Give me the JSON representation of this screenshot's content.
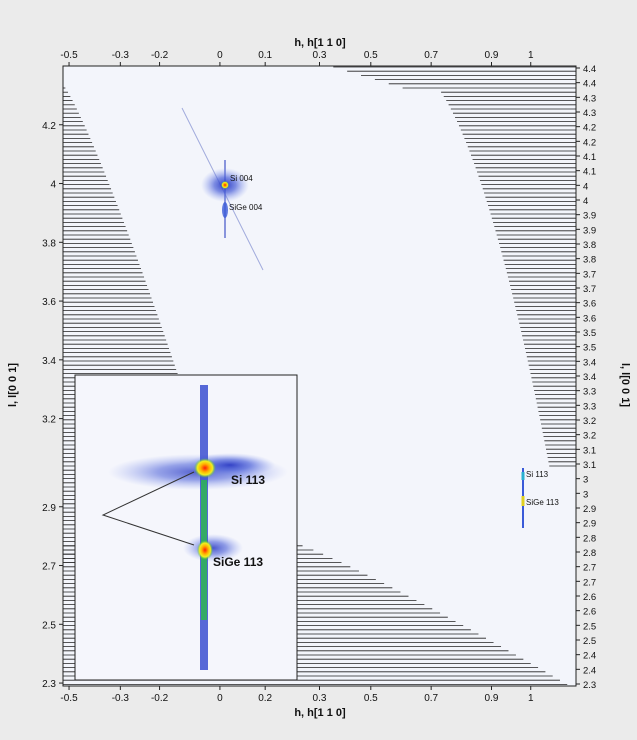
{
  "chart_data": {
    "type": "heatmap",
    "title": "",
    "xlabel": "h, h[1 1 0]",
    "ylabel": "l, l[0 0 1]",
    "xlim": [
      -0.52,
      1.18
    ],
    "ylim": [
      2.29,
      4.4
    ],
    "x_ticks_bottom": [
      "-0.5",
      "-0.3",
      "-0.2",
      "0",
      "0.2",
      "0.3",
      "0.5",
      "0.7",
      "0.9",
      "1"
    ],
    "x_tick_values_bottom": [
      -0.5,
      -0.33,
      -0.2,
      0,
      0.15,
      0.33,
      0.5,
      0.7,
      0.9,
      1.03
    ],
    "x_ticks_top": [
      "-0.5",
      "-0.3",
      "-0.2",
      "0",
      "0.1",
      "0.3",
      "0.5",
      "0.7",
      "0.9",
      "1"
    ],
    "x_tick_values_top": [
      -0.5,
      -0.33,
      -0.2,
      0,
      0.15,
      0.33,
      0.5,
      0.7,
      0.9,
      1.03
    ],
    "y_ticks_left": [
      "4.2",
      "4",
      "3.8",
      "3.6",
      "3.4",
      "3.2",
      "2.9",
      "2.7",
      "2.5",
      "2.3"
    ],
    "y_tick_values_left": [
      4.2,
      4.0,
      3.8,
      3.6,
      3.4,
      3.2,
      2.9,
      2.7,
      2.5,
      2.3
    ],
    "y_ticks_right": [
      "4.4",
      "4.4",
      "4.3",
      "4.3",
      "4.2",
      "4.2",
      "4.1",
      "4.1",
      "4",
      "4",
      "3.9",
      "3.9",
      "3.8",
      "3.8",
      "3.7",
      "3.7",
      "3.6",
      "3.6",
      "3.5",
      "3.5",
      "3.4",
      "3.4",
      "3.3",
      "3.3",
      "3.2",
      "3.2",
      "3.1",
      "3.1",
      "3",
      "3",
      "2.9",
      "2.9",
      "2.8",
      "2.8",
      "2.7",
      "2.7",
      "2.6",
      "2.6",
      "2.5",
      "2.5",
      "2.4",
      "2.4",
      "2.3"
    ],
    "peaks": [
      {
        "label": "Si 004",
        "h": 0.0,
        "l": 4.0
      },
      {
        "label": "SiGe 004",
        "h": 0.0,
        "l": 3.96
      },
      {
        "label": "Si 113",
        "h": 0.97,
        "l": 2.99
      },
      {
        "label": "SiGe 113",
        "h": 0.97,
        "l": 2.92
      }
    ],
    "inset": {
      "peaks": [
        {
          "label": "Si 113",
          "intensity": "high"
        },
        {
          "label": "SiGe 113",
          "intensity": "high"
        }
      ]
    },
    "grid": false,
    "legend": "none"
  },
  "colors": {
    "background": "#ebebeb",
    "plot_area": "#f3f5fb",
    "hatch": "#222222",
    "intensity_low": "#3a4fd0",
    "intensity_mid": "#22c040",
    "intensity_high": "#ff2010"
  }
}
